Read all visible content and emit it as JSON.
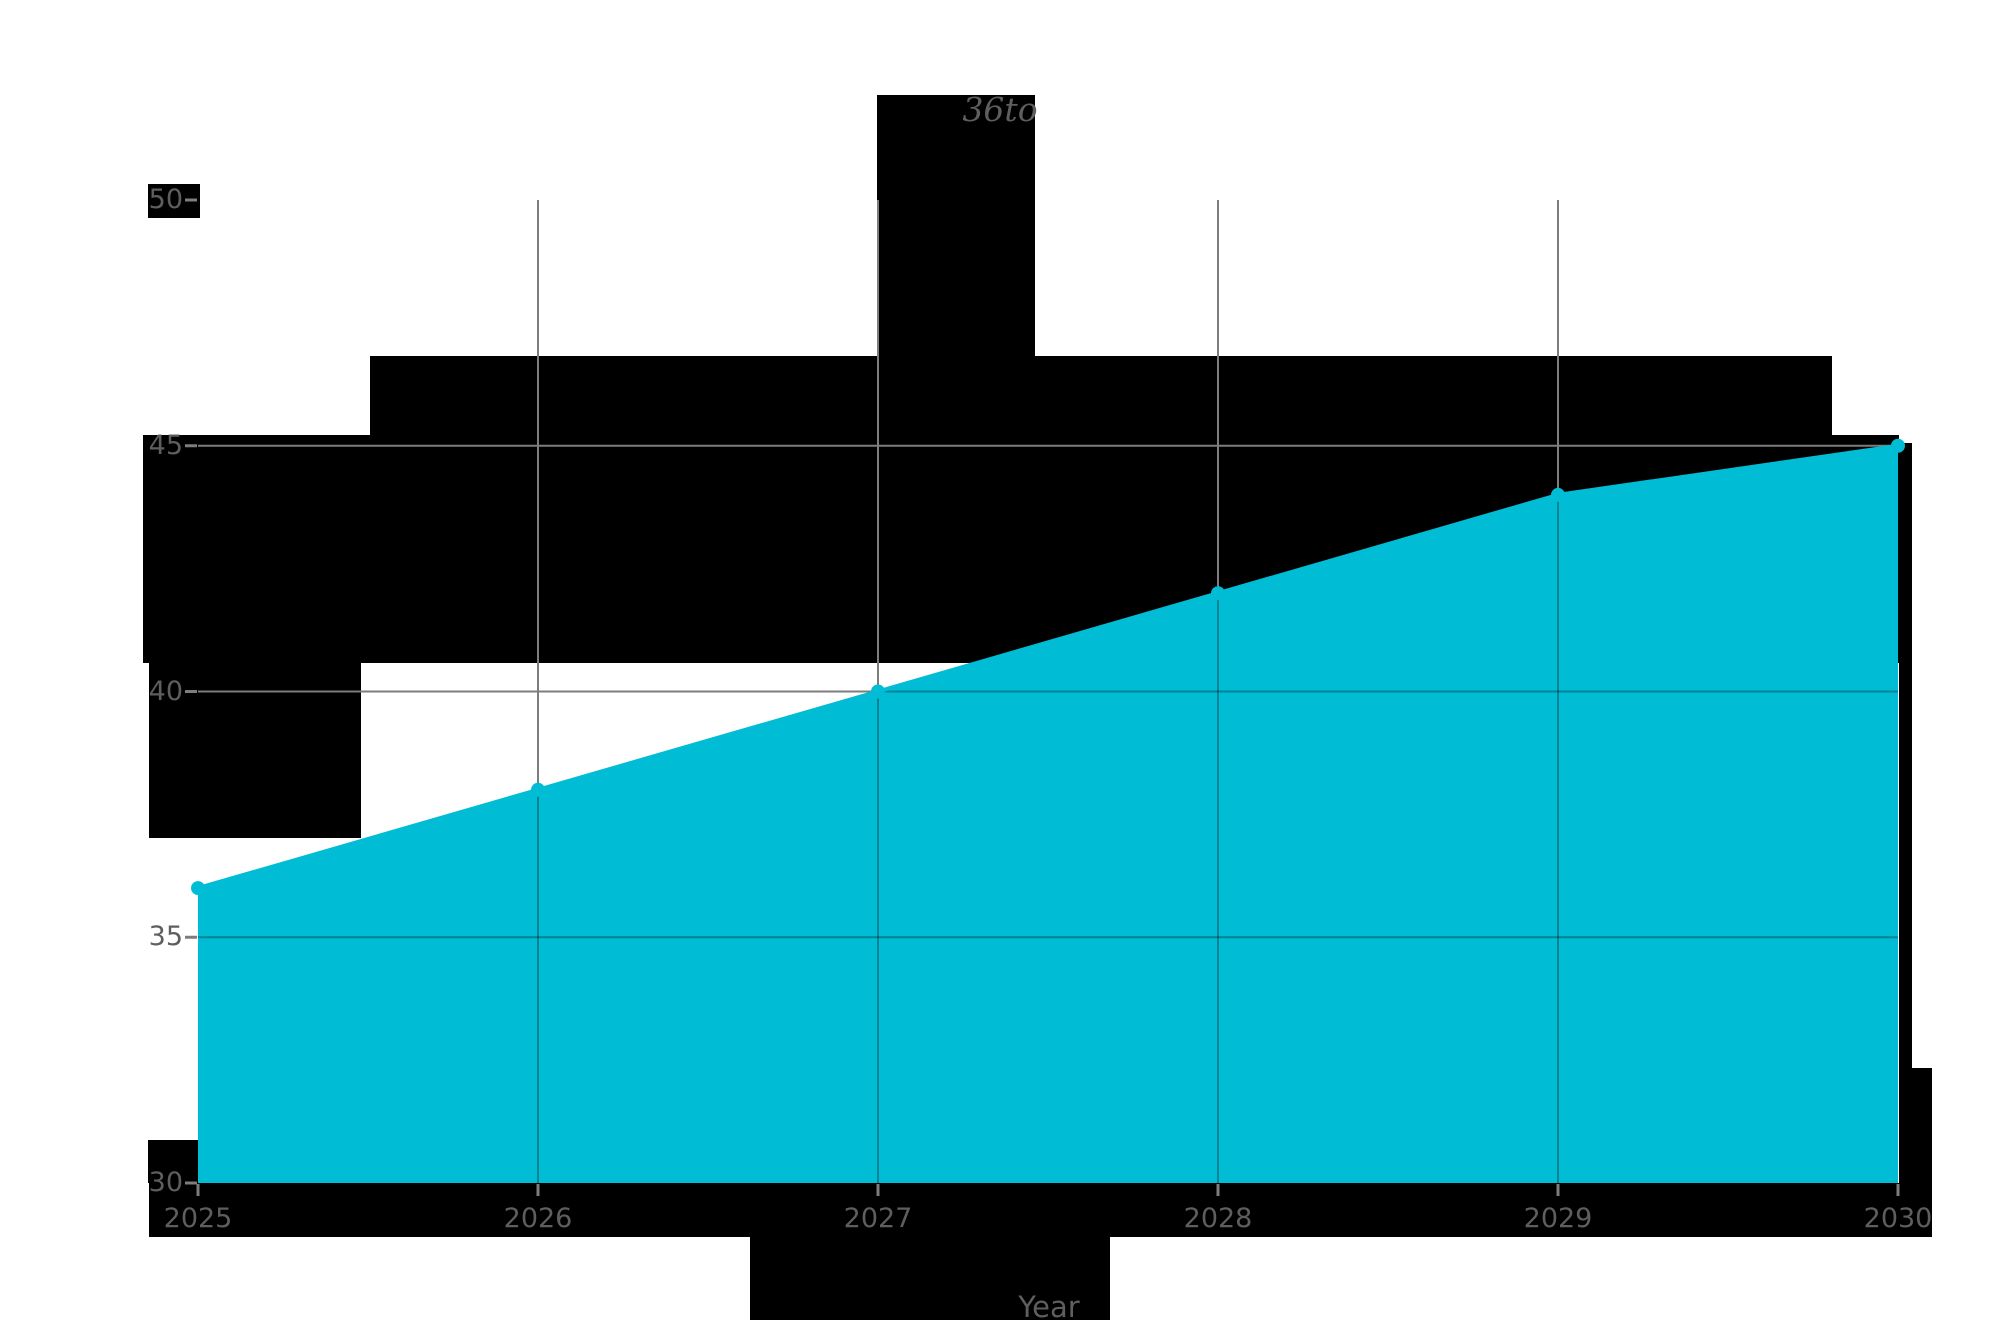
{
  "chart_data": {
    "type": "area",
    "title": "36to",
    "xlabel": "Year",
    "x": [
      2025,
      2026,
      2027,
      2028,
      2029,
      2030
    ],
    "xticklabels": [
      "2025",
      "2026",
      "2027",
      "2028",
      "2029",
      "2030"
    ],
    "values": [
      36,
      38,
      40,
      42,
      44,
      45
    ],
    "yticks": [
      30,
      35,
      40,
      45,
      50
    ],
    "yticklabels": [
      "30",
      "35",
      "40",
      "45",
      "50"
    ],
    "xlim": [
      2025,
      2030
    ],
    "ylim": [
      30,
      50
    ],
    "grid": true,
    "legend": false,
    "marker": "circle",
    "series_color": "#00bcd4",
    "grid_color": "#7d7d7d",
    "text_color": "#5e5e5e",
    "artifact_color": "#000000"
  }
}
